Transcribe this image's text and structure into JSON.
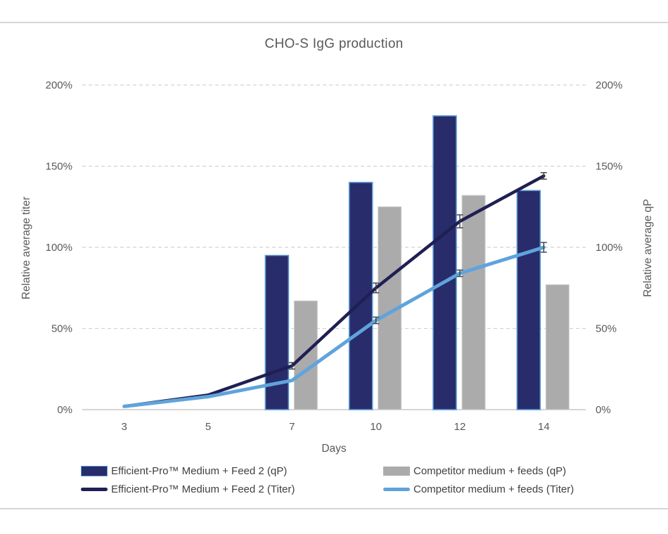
{
  "chart_data": {
    "type": "combo-bar-line",
    "title": "CHO-S IgG production",
    "xlabel": "Days",
    "ylabel_left": "Relative average titer",
    "ylabel_right": "Relative average qP",
    "categories": [
      "3",
      "5",
      "7",
      "10",
      "12",
      "14"
    ],
    "ylim": [
      0,
      200
    ],
    "yticks": [
      0,
      50,
      100,
      150,
      200
    ],
    "ytick_suffix": "%",
    "grid": "horizontal-dashed",
    "legend_position": "bottom",
    "series": [
      {
        "name": "Efficient-Pro™ Medium + Feed 2 (qP)",
        "type": "bar",
        "axis": "right",
        "color": "#282c6a",
        "border_color": "#5b9bd5",
        "values": [
          null,
          null,
          95,
          140,
          181,
          135
        ]
      },
      {
        "name": "Competitor medium + feeds (qP)",
        "type": "bar",
        "axis": "right",
        "color": "#ababab",
        "border_color": "#cfcfcf",
        "values": [
          null,
          null,
          67,
          125,
          132,
          77
        ]
      },
      {
        "name": "Efficient-Pro™ Medium + Feed 2 (Titer)",
        "type": "line",
        "axis": "left",
        "color": "#1f1f54",
        "values": [
          2,
          9,
          27,
          75,
          116,
          144
        ],
        "error": [
          null,
          null,
          2,
          3,
          4,
          2
        ]
      },
      {
        "name": "Competitor medium + feeds (Titer)",
        "type": "line",
        "axis": "left",
        "color": "#5fa3dc",
        "values": [
          2,
          8,
          18,
          55,
          84,
          100
        ],
        "error": [
          null,
          null,
          null,
          2,
          2,
          3
        ]
      }
    ]
  },
  "legend": {
    "items": [
      {
        "label": "Efficient-Pro™ Medium + Feed 2 (qP)"
      },
      {
        "label": "Competitor medium + feeds (qP)"
      },
      {
        "label": "Efficient-Pro™ Medium + Feed 2 (Titer)"
      },
      {
        "label": "Competitor medium + feeds (Titer)"
      }
    ]
  },
  "colors": {
    "text": "#595959",
    "gridline": "#d2d2d2",
    "axis_line": "#c9c9c9",
    "error_bar": "#3f3f3f",
    "card_edge": "#d6d6d6"
  }
}
